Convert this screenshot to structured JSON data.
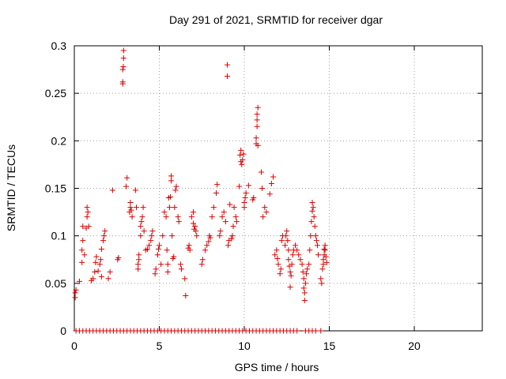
{
  "chart_data": {
    "type": "scatter",
    "title": "Day 291 of 2021, SRMTID for receiver dgar",
    "xlabel": "GPS time / hours",
    "ylabel": "SRMTID / TECUs",
    "xlim": [
      0,
      24
    ],
    "ylim": [
      0,
      0.3
    ],
    "xticks": [
      0,
      5,
      10,
      15,
      20
    ],
    "yticks": [
      0,
      0.05,
      0.1,
      0.15,
      0.2,
      0.25,
      0.3
    ],
    "xtick_labels": [
      "0",
      "5",
      "10",
      "15",
      "20"
    ],
    "ytick_labels": [
      "0",
      "0.05",
      "0.1",
      "0.15",
      "0.2",
      "0.25",
      "0.3"
    ],
    "grid": true,
    "marker": "+",
    "series": [
      {
        "name": "SRMTID",
        "color": "#dd0000",
        "points": [
          [
            0.05,
            0.035
          ],
          [
            0.05,
            0.04
          ],
          [
            0.1,
            0.043
          ],
          [
            0.3,
            0.052
          ],
          [
            0.45,
            0.072
          ],
          [
            0.45,
            0.085
          ],
          [
            0.5,
            0.095
          ],
          [
            0.5,
            0.11
          ],
          [
            0.6,
            0.08
          ],
          [
            0.7,
            0.108
          ],
          [
            0.75,
            0.12
          ],
          [
            0.75,
            0.13
          ],
          [
            0.8,
            0.125
          ],
          [
            0.85,
            0.11
          ],
          [
            1.0,
            0.053
          ],
          [
            1.1,
            0.055
          ],
          [
            1.2,
            0.062
          ],
          [
            1.25,
            0.072
          ],
          [
            1.3,
            0.078
          ],
          [
            1.4,
            0.063
          ],
          [
            1.5,
            0.07
          ],
          [
            1.55,
            0.075
          ],
          [
            1.6,
            0.086
          ],
          [
            1.6,
            0.057
          ],
          [
            1.7,
            0.095
          ],
          [
            1.75,
            0.1
          ],
          [
            1.8,
            0.105
          ],
          [
            2.0,
            0.055
          ],
          [
            2.1,
            0.062
          ],
          [
            2.25,
            0.148
          ],
          [
            2.55,
            0.075
          ],
          [
            2.6,
            0.077
          ],
          [
            2.85,
            0.26
          ],
          [
            2.85,
            0.262
          ],
          [
            2.85,
            0.275
          ],
          [
            2.88,
            0.278
          ],
          [
            2.9,
            0.287
          ],
          [
            2.9,
            0.295
          ],
          [
            3.05,
            0.152
          ],
          [
            3.1,
            0.161
          ],
          [
            3.25,
            0.125
          ],
          [
            3.3,
            0.13
          ],
          [
            3.3,
            0.135
          ],
          [
            3.35,
            0.127
          ],
          [
            3.4,
            0.12
          ],
          [
            3.6,
            0.148
          ],
          [
            3.65,
            0.13
          ],
          [
            3.75,
            0.065
          ],
          [
            3.75,
            0.07
          ],
          [
            3.8,
            0.075
          ],
          [
            3.8,
            0.08
          ],
          [
            3.9,
            0.1
          ],
          [
            3.9,
            0.11
          ],
          [
            3.95,
            0.115
          ],
          [
            4.0,
            0.12
          ],
          [
            4.05,
            0.13
          ],
          [
            4.1,
            0.105
          ],
          [
            4.2,
            0.085
          ],
          [
            4.3,
            0.086
          ],
          [
            4.4,
            0.09
          ],
          [
            4.5,
            0.095
          ],
          [
            4.55,
            0.1
          ],
          [
            4.6,
            0.105
          ],
          [
            4.75,
            0.06
          ],
          [
            4.8,
            0.065
          ],
          [
            4.9,
            0.08
          ],
          [
            4.95,
            0.086
          ],
          [
            5.0,
            0.09
          ],
          [
            5.1,
            0.07
          ],
          [
            5.2,
            0.1
          ],
          [
            5.3,
            0.125
          ],
          [
            5.4,
            0.12
          ],
          [
            5.45,
            0.085
          ],
          [
            5.5,
            0.07
          ],
          [
            5.5,
            0.062
          ],
          [
            5.55,
            0.14
          ],
          [
            5.6,
            0.13
          ],
          [
            5.65,
            0.141
          ],
          [
            5.7,
            0.158
          ],
          [
            5.7,
            0.163
          ],
          [
            5.75,
            0.1
          ],
          [
            5.8,
            0.076
          ],
          [
            5.85,
            0.078
          ],
          [
            5.9,
            0.13
          ],
          [
            5.95,
            0.148
          ],
          [
            6.0,
            0.152
          ],
          [
            6.1,
            0.12
          ],
          [
            6.15,
            0.115
          ],
          [
            6.25,
            0.07
          ],
          [
            6.3,
            0.065
          ],
          [
            6.5,
            0.055
          ],
          [
            6.55,
            0.037
          ],
          [
            6.7,
            0.087
          ],
          [
            6.75,
            0.09
          ],
          [
            6.8,
            0.085
          ],
          [
            6.9,
            0.12
          ],
          [
            7.0,
            0.125
          ],
          [
            7.0,
            0.113
          ],
          [
            7.05,
            0.107
          ],
          [
            7.1,
            0.11
          ],
          [
            7.15,
            0.105
          ],
          [
            7.2,
            0.1
          ],
          [
            7.5,
            0.07
          ],
          [
            7.55,
            0.075
          ],
          [
            7.7,
            0.085
          ],
          [
            7.8,
            0.09
          ],
          [
            7.9,
            0.094
          ],
          [
            7.95,
            0.1
          ],
          [
            8.0,
            0.098
          ],
          [
            8.1,
            0.12
          ],
          [
            8.2,
            0.13
          ],
          [
            8.35,
            0.145
          ],
          [
            8.4,
            0.154
          ],
          [
            8.55,
            0.1
          ],
          [
            8.6,
            0.105
          ],
          [
            8.7,
            0.12
          ],
          [
            8.8,
            0.125
          ],
          [
            8.9,
            0.115
          ],
          [
            9.0,
            0.28
          ],
          [
            9.0,
            0.268
          ],
          [
            9.05,
            0.09
          ],
          [
            9.1,
            0.095
          ],
          [
            9.15,
            0.133
          ],
          [
            9.25,
            0.097
          ],
          [
            9.3,
            0.1
          ],
          [
            9.35,
            0.11
          ],
          [
            9.4,
            0.13
          ],
          [
            9.5,
            0.12
          ],
          [
            9.55,
            0.115
          ],
          [
            9.7,
            0.152
          ],
          [
            9.75,
            0.185
          ],
          [
            9.8,
            0.19
          ],
          [
            9.8,
            0.178
          ],
          [
            9.85,
            0.175
          ],
          [
            9.9,
            0.18
          ],
          [
            9.95,
            0.186
          ],
          [
            10.0,
            0.135
          ],
          [
            10.0,
            0.13
          ],
          [
            10.05,
            0.14
          ],
          [
            10.1,
            0.145
          ],
          [
            10.25,
            0.153
          ],
          [
            10.5,
            0.138
          ],
          [
            10.55,
            0.14
          ],
          [
            10.7,
            0.197
          ],
          [
            10.7,
            0.203
          ],
          [
            10.75,
            0.215
          ],
          [
            10.75,
            0.222
          ],
          [
            10.75,
            0.228
          ],
          [
            10.8,
            0.235
          ],
          [
            10.8,
            0.195
          ],
          [
            11.0,
            0.167
          ],
          [
            11.05,
            0.15
          ],
          [
            11.1,
            0.12
          ],
          [
            11.2,
            0.13
          ],
          [
            11.3,
            0.125
          ],
          [
            11.5,
            0.144
          ],
          [
            11.6,
            0.155
          ],
          [
            11.7,
            0.162
          ],
          [
            11.8,
            0.08
          ],
          [
            11.9,
            0.085
          ],
          [
            11.95,
            0.076
          ],
          [
            12.0,
            0.07
          ],
          [
            12.1,
            0.06
          ],
          [
            12.15,
            0.065
          ],
          [
            12.2,
            0.095
          ],
          [
            12.25,
            0.1
          ],
          [
            12.4,
            0.09
          ],
          [
            12.45,
            0.1
          ],
          [
            12.5,
            0.105
          ],
          [
            12.55,
            0.095
          ],
          [
            12.6,
            0.085
          ],
          [
            12.6,
            0.075
          ],
          [
            12.65,
            0.068
          ],
          [
            12.7,
            0.062
          ],
          [
            12.7,
            0.046
          ],
          [
            12.75,
            0.058
          ],
          [
            12.8,
            0.07
          ],
          [
            12.85,
            0.08
          ],
          [
            12.9,
            0.085
          ],
          [
            13.0,
            0.09
          ],
          [
            13.1,
            0.085
          ],
          [
            13.2,
            0.08
          ],
          [
            13.3,
            0.075
          ],
          [
            13.4,
            0.07
          ],
          [
            13.45,
            0.062
          ],
          [
            13.5,
            0.055
          ],
          [
            13.5,
            0.045
          ],
          [
            13.55,
            0.04
          ],
          [
            13.55,
            0.032
          ],
          [
            13.6,
            0.05
          ],
          [
            13.65,
            0.06
          ],
          [
            13.7,
            0.065
          ],
          [
            13.8,
            0.07
          ],
          [
            13.85,
            0.085
          ],
          [
            13.9,
            0.1
          ],
          [
            13.95,
            0.115
          ],
          [
            14.0,
            0.126
          ],
          [
            14.0,
            0.135
          ],
          [
            14.05,
            0.13
          ],
          [
            14.1,
            0.12
          ],
          [
            14.15,
            0.11
          ],
          [
            14.2,
            0.1
          ],
          [
            14.25,
            0.095
          ],
          [
            14.3,
            0.09
          ],
          [
            14.35,
            0.08
          ],
          [
            14.5,
            0.055
          ],
          [
            14.55,
            0.05
          ],
          [
            14.6,
            0.065
          ],
          [
            14.65,
            0.07
          ],
          [
            14.65,
            0.075
          ],
          [
            14.7,
            0.08
          ],
          [
            14.7,
            0.086
          ],
          [
            14.75,
            0.09
          ],
          [
            14.75,
            0.085
          ],
          [
            14.8,
            0.078
          ],
          [
            14.85,
            0.072
          ]
        ],
        "zero_points_x": [
          0.1,
          0.3,
          0.5,
          0.7,
          0.9,
          1.1,
          1.3,
          1.5,
          1.7,
          1.9,
          2.1,
          2.3,
          2.5,
          2.7,
          2.9,
          3.1,
          3.3,
          3.5,
          3.7,
          3.9,
          4.1,
          4.3,
          4.5,
          4.7,
          4.9,
          5.1,
          5.3,
          5.5,
          5.7,
          5.9,
          6.1,
          6.3,
          6.5,
          6.7,
          6.9,
          7.1,
          7.3,
          7.5,
          7.7,
          7.9,
          8.1,
          8.3,
          8.5,
          8.7,
          8.9,
          9.1,
          9.3,
          9.5,
          9.7,
          9.9,
          10.1,
          10.3,
          10.5,
          10.7,
          10.9,
          11.1,
          11.3,
          11.5,
          11.7,
          11.9,
          12.1,
          12.3,
          12.5,
          12.7,
          12.9,
          13.1,
          13.6,
          13.8,
          14.0,
          14.2,
          14.5
        ]
      }
    ]
  }
}
